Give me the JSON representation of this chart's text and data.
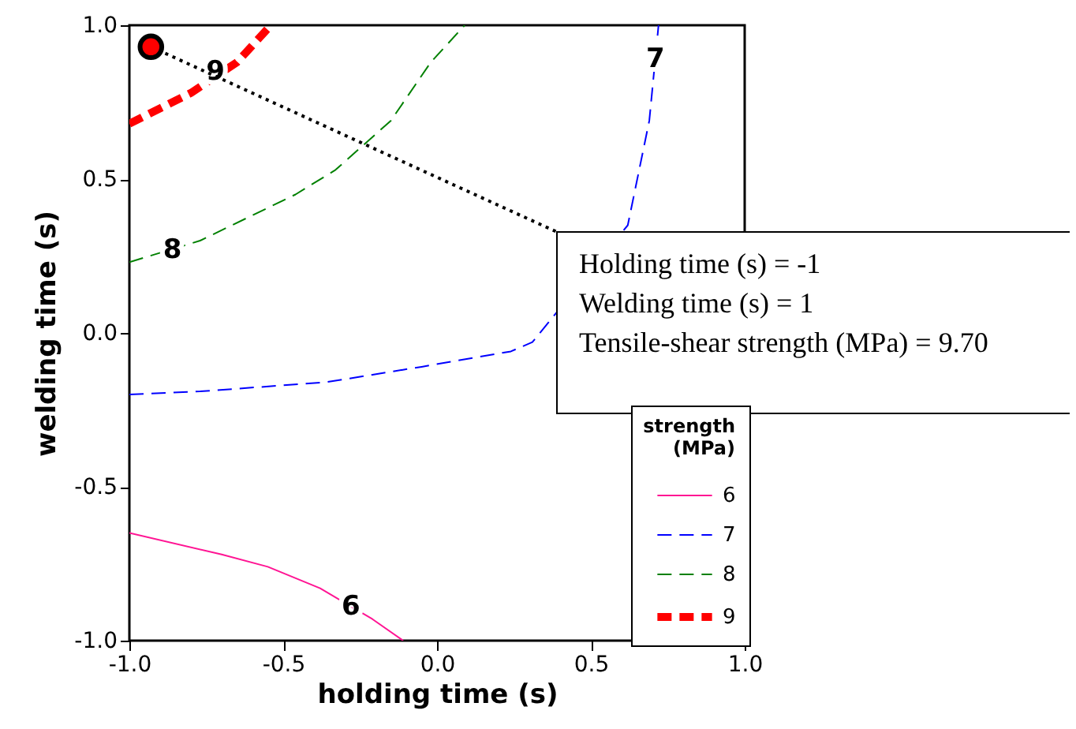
{
  "chart_data": {
    "type": "line",
    "xlabel": "holding time (s)",
    "ylabel": "welding time (s)",
    "legend_title": "strength (MPa)",
    "legend": "bottom right",
    "grid": false,
    "xlim": [
      -1,
      1
    ],
    "ylim": [
      -1,
      1
    ],
    "xticks": [
      {
        "value": -1,
        "label": "-1.0"
      },
      {
        "value": -0.5,
        "label": "-0.5"
      },
      {
        "value": 0,
        "label": "0.0"
      },
      {
        "value": 0.5,
        "label": "0.5"
      },
      {
        "value": 1,
        "label": "1.0"
      }
    ],
    "yticks": [
      {
        "value": -1,
        "label": "-1.0"
      },
      {
        "value": -0.5,
        "label": "-0.5"
      },
      {
        "value": 0,
        "label": "0.0"
      },
      {
        "value": 0.5,
        "label": "0.5"
      },
      {
        "value": 1,
        "label": "1.0"
      }
    ],
    "series": [
      {
        "name": "6",
        "color": "#ff1493",
        "line_style": "solid",
        "x": [
          -1,
          -0.7,
          -0.55,
          -0.38,
          -0.21,
          -0.11
        ],
        "values": [
          -0.65,
          -0.72,
          -0.76,
          -0.83,
          -0.93,
          -1.0
        ]
      },
      {
        "name": "7",
        "color": "#0000ff",
        "line_style": "dashed",
        "x": [
          -1,
          -0.77,
          -0.36,
          -0.05,
          0.24,
          0.31,
          0.62,
          0.69,
          0.72
        ],
        "values": [
          -0.2,
          -0.19,
          -0.16,
          -0.11,
          -0.06,
          -0.03,
          0.35,
          0.69,
          1.0
        ]
      },
      {
        "name": "8",
        "color": "#008000",
        "line_style": "dashed",
        "x": [
          -1,
          -0.77,
          -0.46,
          -0.33,
          -0.15,
          -0.02,
          0.09
        ],
        "values": [
          0.23,
          0.3,
          0.45,
          0.53,
          0.69,
          0.88,
          1.0
        ]
      },
      {
        "name": "9",
        "color": "#ff0000",
        "line_style": "dashed",
        "x": [
          -1,
          -0.8,
          -0.65,
          -0.54
        ],
        "values": [
          0.68,
          0.78,
          0.88,
          1.0
        ]
      },
      {
        "type": "scatter",
        "color": "#ff0000",
        "marker": "circle",
        "x": [
          -0.93
        ],
        "values": [
          0.93
        ]
      }
    ],
    "annotations": [
      {
        "text": "6",
        "x": -0.28,
        "y": -0.89
      },
      {
        "text": "7",
        "x": 0.71,
        "y": 0.89
      },
      {
        "text": "8",
        "x": -0.86,
        "y": 0.27
      },
      {
        "text": "9",
        "x": -0.72,
        "y": 0.85
      },
      {
        "text": "Holding time (s) = -1\nWelding time (s) = 1\nTensile-shear strength (MPa) = 9.70",
        "x": -0.93,
        "y": 0.93
      }
    ]
  }
}
